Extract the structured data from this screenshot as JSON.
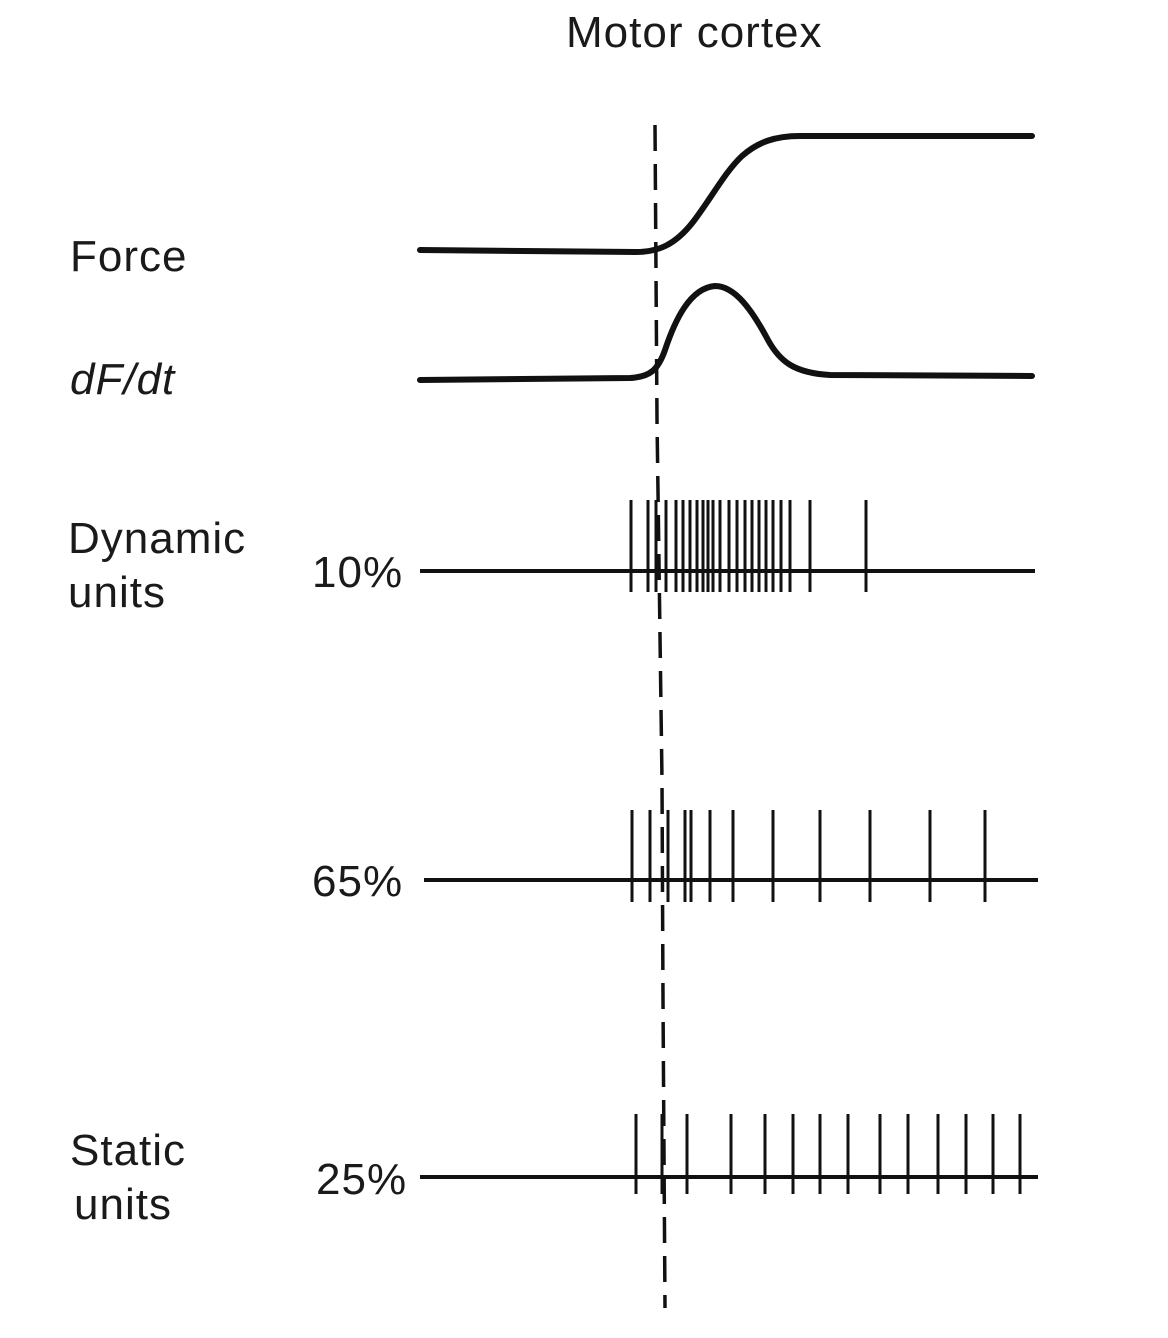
{
  "figure": {
    "title": "Motor cortex",
    "traces": {
      "force": {
        "label": "Force"
      },
      "dfdt": {
        "label": "dF/dt"
      }
    },
    "groups": {
      "dynamic": {
        "label_line1": "Dynamic",
        "label_line2": "units"
      },
      "static": {
        "label_line1": "Static",
        "label_line2": "units"
      }
    },
    "spike_trains": [
      {
        "percent": "10%",
        "group": "dynamic"
      },
      {
        "percent": "65%",
        "group": "dynamic"
      },
      {
        "percent": "25%",
        "group": "static"
      }
    ],
    "colors": {
      "ink": "#111111",
      "background": "#ffffff"
    }
  }
}
